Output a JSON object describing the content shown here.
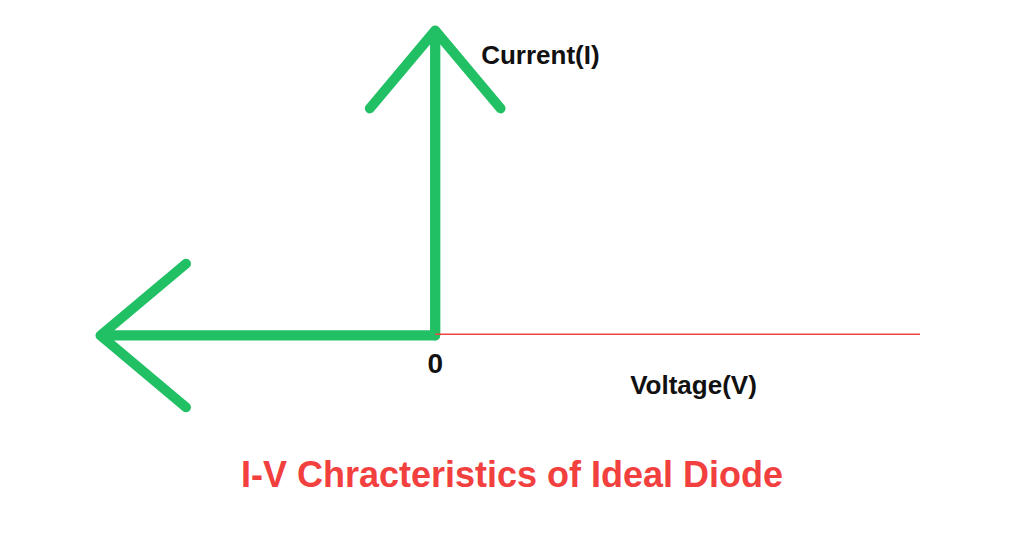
{
  "chart_data": {
    "type": "line",
    "title": "I-V Chracteristics of Ideal Diode",
    "xlabel": "Voltage(V)",
    "ylabel": "Current(I)",
    "xlim": [
      -1,
      1.45
    ],
    "ylim": [
      0,
      1
    ],
    "xticks": [
      0
    ],
    "tick_labels": "x",
    "series": [
      {
        "x": [
          -1,
          0,
          0
        ],
        "y": [
          0,
          0,
          1
        ],
        "color": "#22c065",
        "marker": "arrow"
      },
      {
        "x": [
          0,
          1.45
        ],
        "y": [
          0,
          0
        ],
        "color": "#f04444"
      }
    ]
  }
}
